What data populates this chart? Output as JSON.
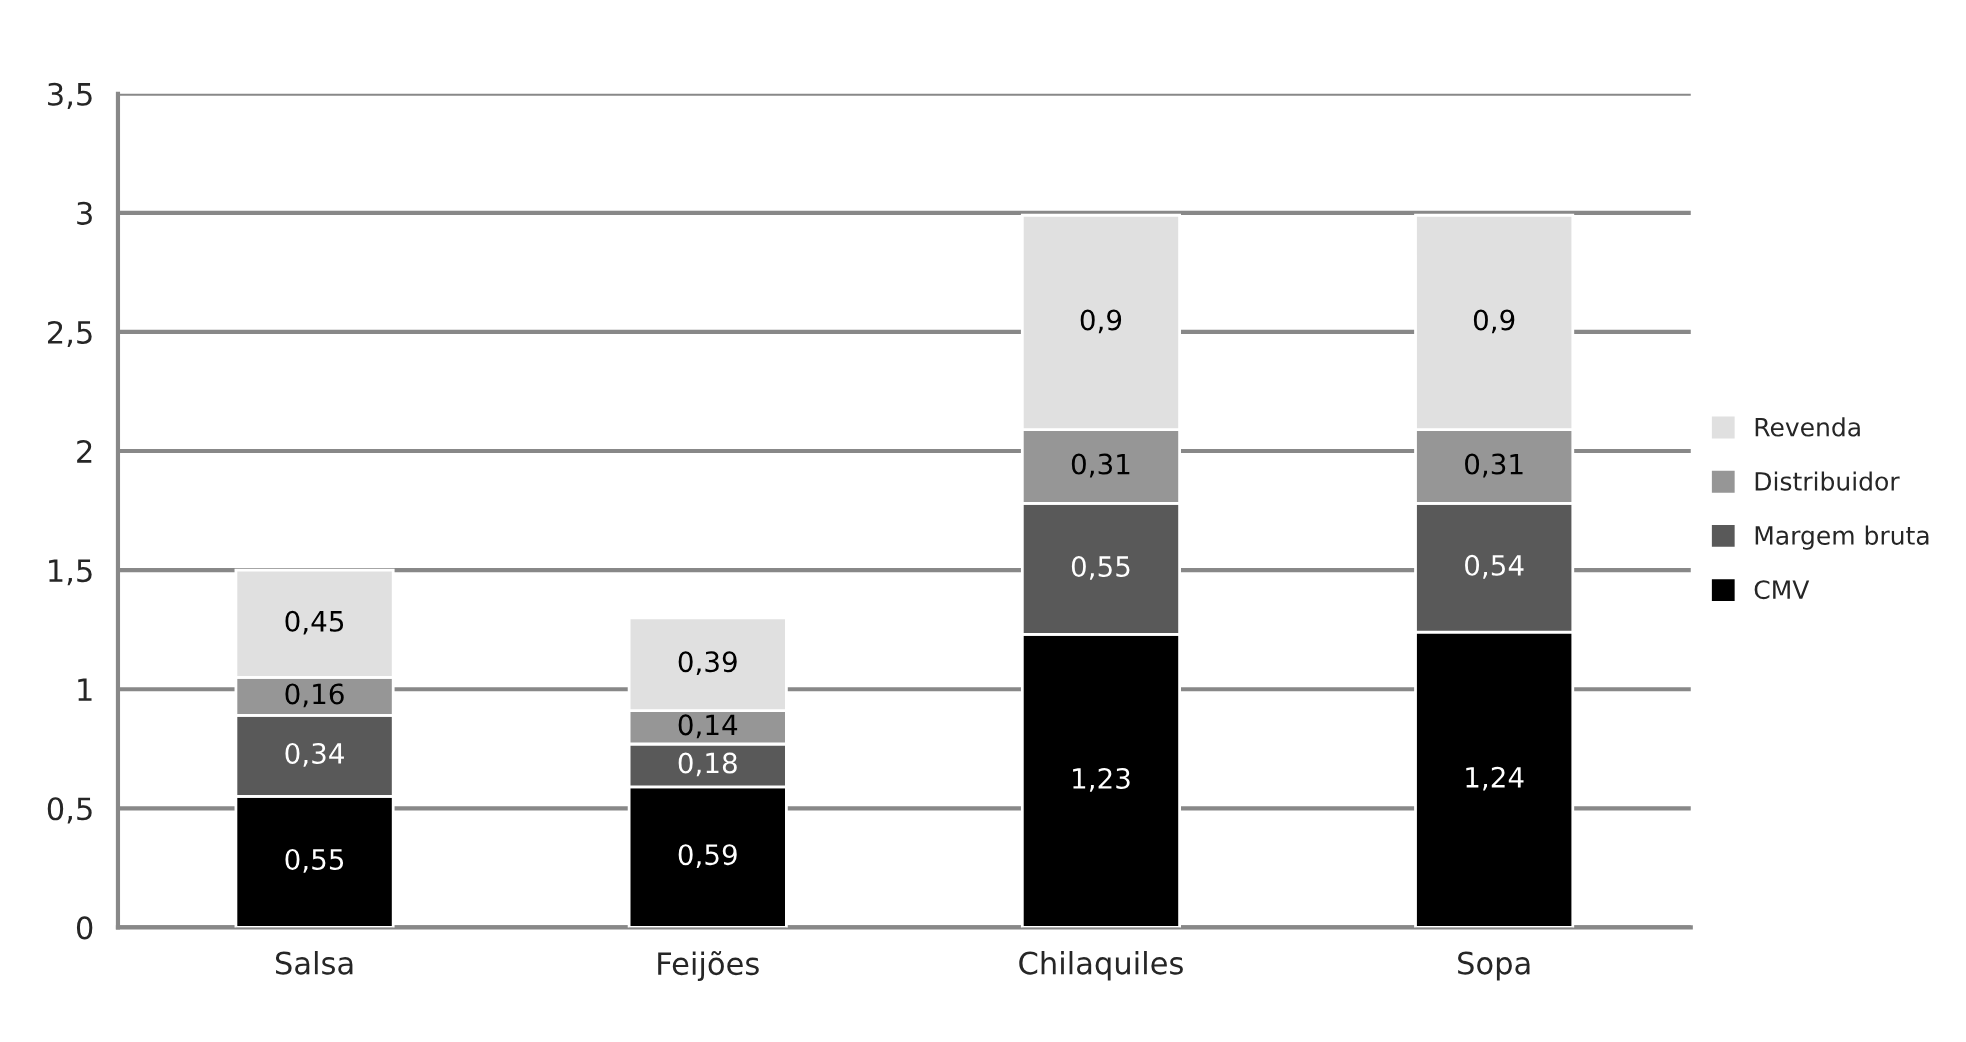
{
  "chart_data": {
    "type": "bar",
    "stacked": true,
    "categories": [
      "Salsa",
      "Feijões",
      "Chilaquiles",
      "Sopa"
    ],
    "series": [
      {
        "name": "CMV",
        "color": "#000000",
        "values": [
          0.55,
          0.59,
          1.23,
          1.24
        ],
        "value_labels": [
          "0,55",
          "0,59",
          "1,23",
          "1,24"
        ]
      },
      {
        "name": "Margem bruta",
        "color": "#595959",
        "values": [
          0.34,
          0.18,
          0.55,
          0.54
        ],
        "value_labels": [
          "0,34",
          "0,18",
          "0,55",
          "0,54"
        ]
      },
      {
        "name": "Distribuidor",
        "color": "#969696",
        "values": [
          0.16,
          0.14,
          0.31,
          0.31
        ],
        "value_labels": [
          "0,16",
          "0,14",
          "0,31",
          "0,31"
        ]
      },
      {
        "name": "Revenda",
        "color": "#e0e0e0",
        "values": [
          0.45,
          0.39,
          0.9,
          0.9
        ],
        "value_labels": [
          "0,45",
          "0,39",
          "0,9",
          "0,9"
        ]
      }
    ],
    "ylim": [
      0,
      3.5
    ],
    "yticks": [
      0,
      {
        "value": 0.5,
        "label": "0,5"
      },
      1,
      {
        "value": 1.5,
        "label": "1,5"
      },
      2,
      {
        "value": 2.5,
        "label": "2,5"
      },
      3,
      {
        "value": 3.5,
        "label": "3,5"
      }
    ],
    "grid": "y",
    "legend": "right"
  }
}
